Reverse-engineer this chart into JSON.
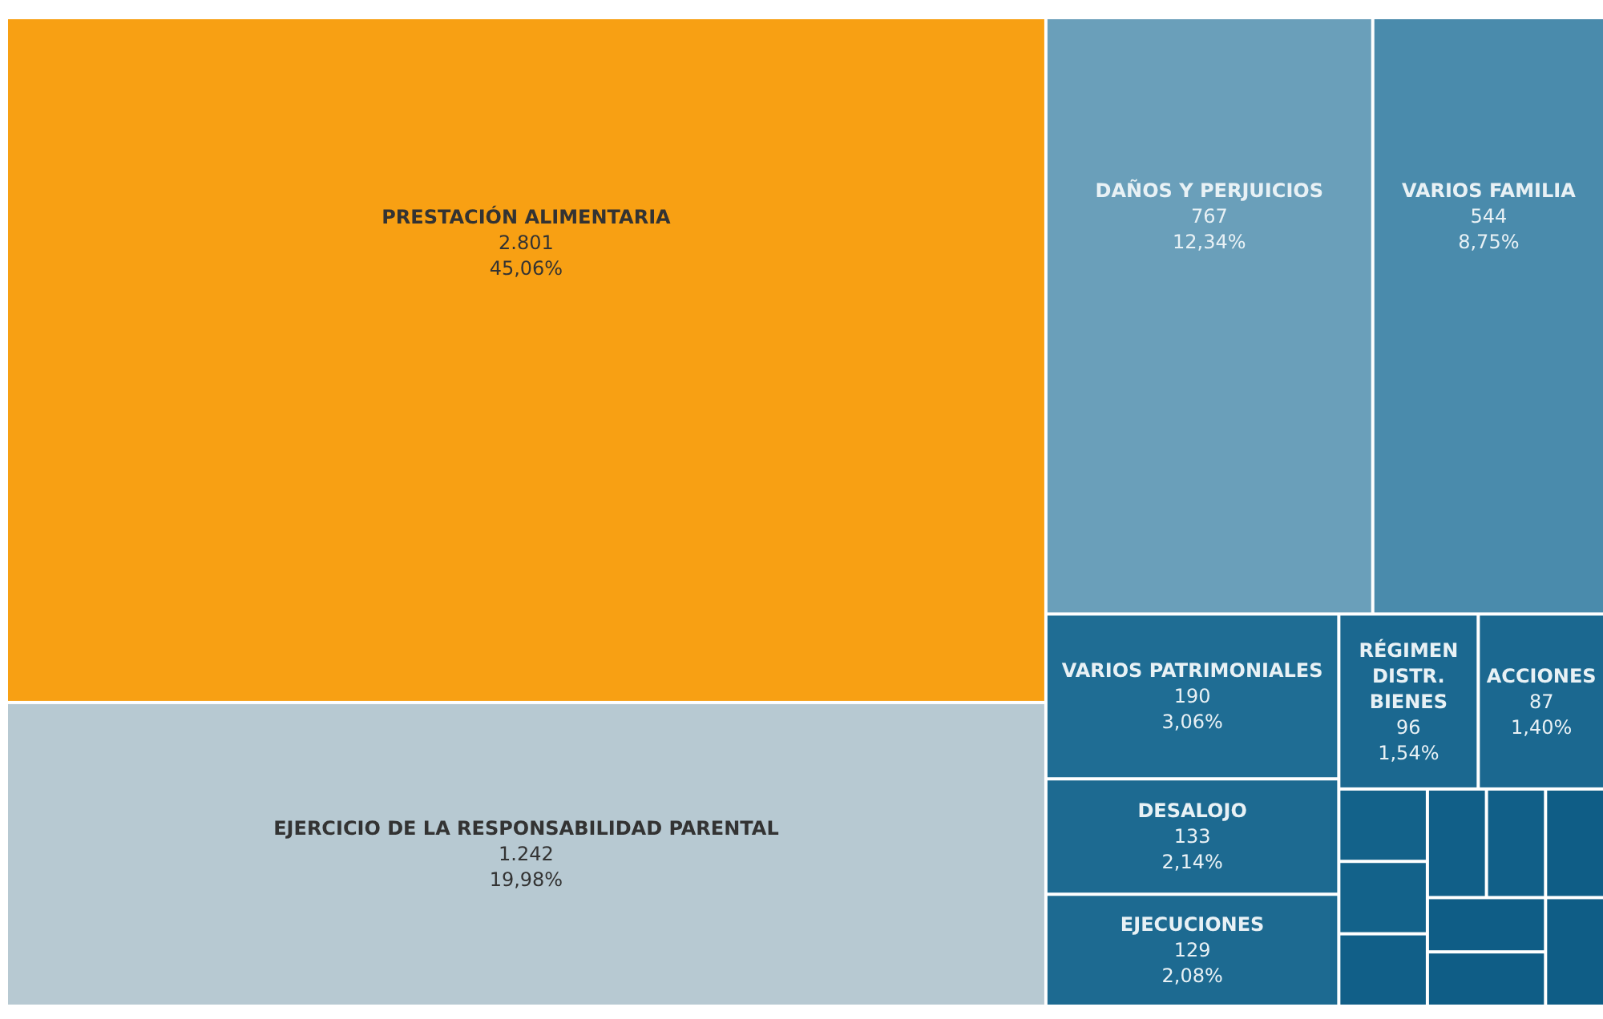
{
  "chart_data": {
    "type": "other",
    "categories": [
      "PRESTACIÓN ALIMENTARIA",
      "EJERCICIO DE LA RESPONSABILIDAD PARENTAL",
      "DAÑOS Y PERJUICIOS",
      "VARIOS FAMILIA",
      "VARIOS PATRIMONIALES",
      "DESALOJO",
      "EJECUCIONES",
      "RÉGIMEN DISTR. BIENES",
      "ACCIONES",
      null,
      null,
      null,
      null,
      null,
      null,
      null,
      null,
      null
    ],
    "values": [
      2801,
      1242,
      767,
      544,
      190,
      133,
      129,
      96,
      87,
      null,
      null,
      null,
      null,
      null,
      null,
      null,
      null,
      null
    ],
    "value_labels": [
      "2.801",
      "1.242",
      "767",
      "544",
      "190",
      "133",
      "129",
      "96",
      "87",
      null,
      null,
      null,
      null,
      null,
      null,
      null,
      null,
      null
    ],
    "annotations": [
      {
        "text": "45,06%",
        "x": "PRESTACIÓN ALIMENTARIA"
      },
      {
        "text": "19,98%",
        "x": "EJERCICIO DE LA RESPONSABILIDAD PARENTAL"
      },
      {
        "text": "12,34%",
        "x": "DAÑOS Y PERJUICIOS"
      },
      {
        "text": "8,75%",
        "x": "VARIOS FAMILIA"
      },
      {
        "text": "3,06%",
        "x": "VARIOS PATRIMONIALES"
      },
      {
        "text": "2,14%",
        "x": "DESALOJO"
      },
      {
        "text": "2,08%",
        "x": "EJECUCIONES"
      },
      {
        "text": "1,54%",
        "x": "RÉGIMEN DISTR. BIENES"
      },
      {
        "text": "1,40%",
        "x": "ACCIONES"
      }
    ],
    "colors": [
      "#f8a013",
      "#b7c9d2",
      "#6a9fba",
      "#4a8bac",
      "#1f6d94",
      "#1d6a91",
      "#1d6a91",
      "#1b6890",
      "#1b6890",
      "#13628a",
      "#13628a",
      "#115f88",
      "#115f88",
      "#115f88",
      "#0f5d86",
      "#0f5d86",
      "#0f5d86",
      "#0f5d86"
    ]
  }
}
